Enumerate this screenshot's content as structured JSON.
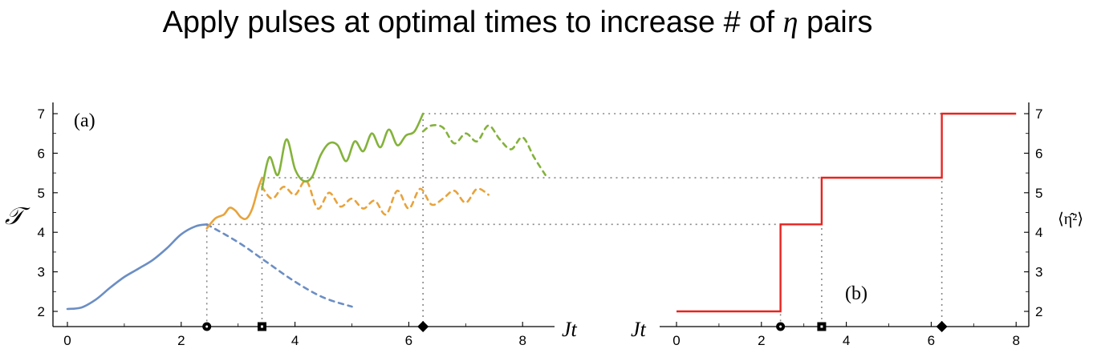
{
  "title": {
    "prefix": "Apply pulses at optimal times to increase # of ",
    "symbol": "η",
    "suffix": " pairs"
  },
  "colors": {
    "blue": "#6b8ec4",
    "orange": "#e8a33b",
    "green": "#84b23b",
    "red": "#e8231f",
    "guide": "#888888",
    "axis": "#000000"
  },
  "chart_data": [
    {
      "type": "line",
      "panel_label": "(a)",
      "ylabel": "𝒯",
      "xlabel": "Jt",
      "xlim": [
        0,
        8.4
      ],
      "ylim": [
        1.75,
        7.1
      ],
      "xticks": [
        0,
        2,
        4,
        6,
        8
      ],
      "yticks": [
        2,
        3,
        4,
        5,
        6,
        7
      ],
      "series": [
        {
          "name": "blue solid",
          "color": "blue",
          "dashed": false,
          "x": [
            0,
            0.25,
            0.5,
            0.75,
            1.0,
            1.25,
            1.5,
            1.75,
            2.0,
            2.25,
            2.45
          ],
          "y": [
            2.06,
            2.1,
            2.3,
            2.6,
            2.87,
            3.08,
            3.3,
            3.6,
            3.95,
            4.15,
            4.2
          ]
        },
        {
          "name": "blue dashed",
          "color": "blue",
          "dashed": true,
          "x": [
            2.45,
            3.0,
            3.5,
            4.0,
            4.5,
            5.0
          ],
          "y": [
            4.2,
            3.75,
            3.25,
            2.75,
            2.35,
            2.12
          ]
        },
        {
          "name": "orange solid",
          "color": "orange",
          "dashed": false,
          "x": [
            2.45,
            2.6,
            2.75,
            2.85,
            2.95,
            3.05,
            3.15,
            3.25,
            3.35,
            3.42
          ],
          "y": [
            4.1,
            4.35,
            4.45,
            4.62,
            4.55,
            4.38,
            4.35,
            4.6,
            5.1,
            5.38
          ]
        },
        {
          "name": "orange dashed",
          "color": "orange",
          "dashed": true,
          "x": [
            3.42,
            3.6,
            3.8,
            4.0,
            4.2,
            4.4,
            4.6,
            4.8,
            5.0,
            5.2,
            5.4,
            5.6,
            5.8,
            6.0,
            6.2,
            6.4,
            6.6,
            6.8,
            7.0,
            7.2,
            7.4
          ],
          "y": [
            5.15,
            4.85,
            5.15,
            4.95,
            5.3,
            4.6,
            5.0,
            4.65,
            4.85,
            4.6,
            4.8,
            4.45,
            5.05,
            4.6,
            5.1,
            4.7,
            4.85,
            5.05,
            4.75,
            5.1,
            4.95
          ]
        },
        {
          "name": "green solid",
          "color": "green",
          "dashed": false,
          "x": [
            3.42,
            3.55,
            3.7,
            3.85,
            4.0,
            4.15,
            4.3,
            4.45,
            4.6,
            4.75,
            4.9,
            5.05,
            5.2,
            5.35,
            5.5,
            5.65,
            5.8,
            5.95,
            6.1,
            6.25
          ],
          "y": [
            5.1,
            5.9,
            5.45,
            6.35,
            5.6,
            5.3,
            5.4,
            5.95,
            6.25,
            6.2,
            5.8,
            6.3,
            6.05,
            6.5,
            6.15,
            6.6,
            6.2,
            6.45,
            6.55,
            7.0
          ]
        },
        {
          "name": "green dashed",
          "color": "green",
          "dashed": true,
          "x": [
            6.25,
            6.4,
            6.6,
            6.8,
            7.0,
            7.2,
            7.4,
            7.6,
            7.8,
            8.0,
            8.2,
            8.4
          ],
          "y": [
            6.55,
            6.7,
            6.65,
            6.25,
            6.5,
            6.3,
            6.7,
            6.35,
            6.1,
            6.4,
            5.9,
            5.45
          ]
        }
      ],
      "guide_lines": [
        {
          "x": 2.45,
          "y": 4.2
        },
        {
          "x": 3.42,
          "y": 5.38
        },
        {
          "x": 6.25,
          "y": 7.0
        }
      ],
      "markers": [
        {
          "x": 2.45,
          "shape": "circle"
        },
        {
          "x": 3.42,
          "shape": "square"
        },
        {
          "x": 6.25,
          "shape": "diamond"
        }
      ]
    },
    {
      "type": "line",
      "panel_label": "(b)",
      "ylabel": "⟨η̂²⟩",
      "xlabel": "Jt",
      "xlim": [
        0,
        8.2
      ],
      "ylim": [
        1.75,
        7.1
      ],
      "xticks": [
        0,
        2,
        4,
        6,
        8
      ],
      "yticks": [
        2,
        3,
        4,
        5,
        6,
        7
      ],
      "series": [
        {
          "name": "red step",
          "color": "red",
          "dashed": false,
          "x": [
            0,
            2.45,
            2.45,
            3.42,
            3.42,
            6.25,
            6.25,
            8.0
          ],
          "y": [
            2.0,
            2.0,
            4.2,
            4.2,
            5.38,
            5.38,
            7.0,
            7.0
          ]
        }
      ],
      "markers": [
        {
          "x": 2.45,
          "shape": "circle"
        },
        {
          "x": 3.42,
          "shape": "square"
        },
        {
          "x": 6.25,
          "shape": "diamond"
        }
      ]
    }
  ]
}
